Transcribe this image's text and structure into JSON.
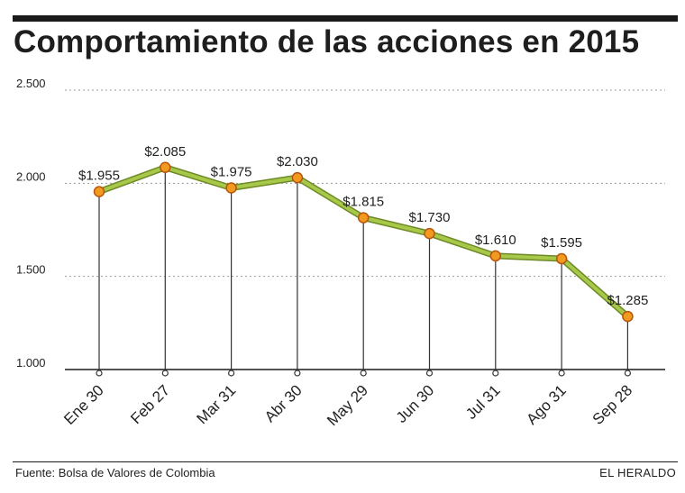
{
  "title": "Comportamiento de las acciones en 2015",
  "source": "Fuente: Bolsa de Valores de Colombia",
  "brand": "EL HERALDO",
  "colors": {
    "line": "#a8c84a",
    "line_edge": "#6e8a26",
    "marker": "#f29a1f",
    "marker_edge": "#b5560f",
    "grid": "#9a9a9a",
    "text": "#222222"
  },
  "chart_data": {
    "type": "line",
    "title": "Comportamiento de las acciones en 2015",
    "categories": [
      "Ene 30",
      "Feb 27",
      "Mar 31",
      "Abr 30",
      "May 29",
      "Jun 30",
      "Jul 31",
      "Ago 31",
      "Sep 28"
    ],
    "values": [
      1955,
      2085,
      1975,
      2030,
      1815,
      1730,
      1610,
      1595,
      1285
    ],
    "data_labels": [
      "$1.955",
      "$2.085",
      "$1.975",
      "$2.030",
      "$1.815",
      "$1.730",
      "$1.610",
      "$1.595",
      "$1.285"
    ],
    "yticks": [
      1000,
      1500,
      2000,
      2500
    ],
    "ytick_labels": [
      "1.000",
      "1.500",
      "2.000",
      "2.500"
    ],
    "ylim": [
      1000,
      2500
    ],
    "grid": true,
    "grid_style": "dotted",
    "xlabel": "",
    "ylabel": ""
  }
}
